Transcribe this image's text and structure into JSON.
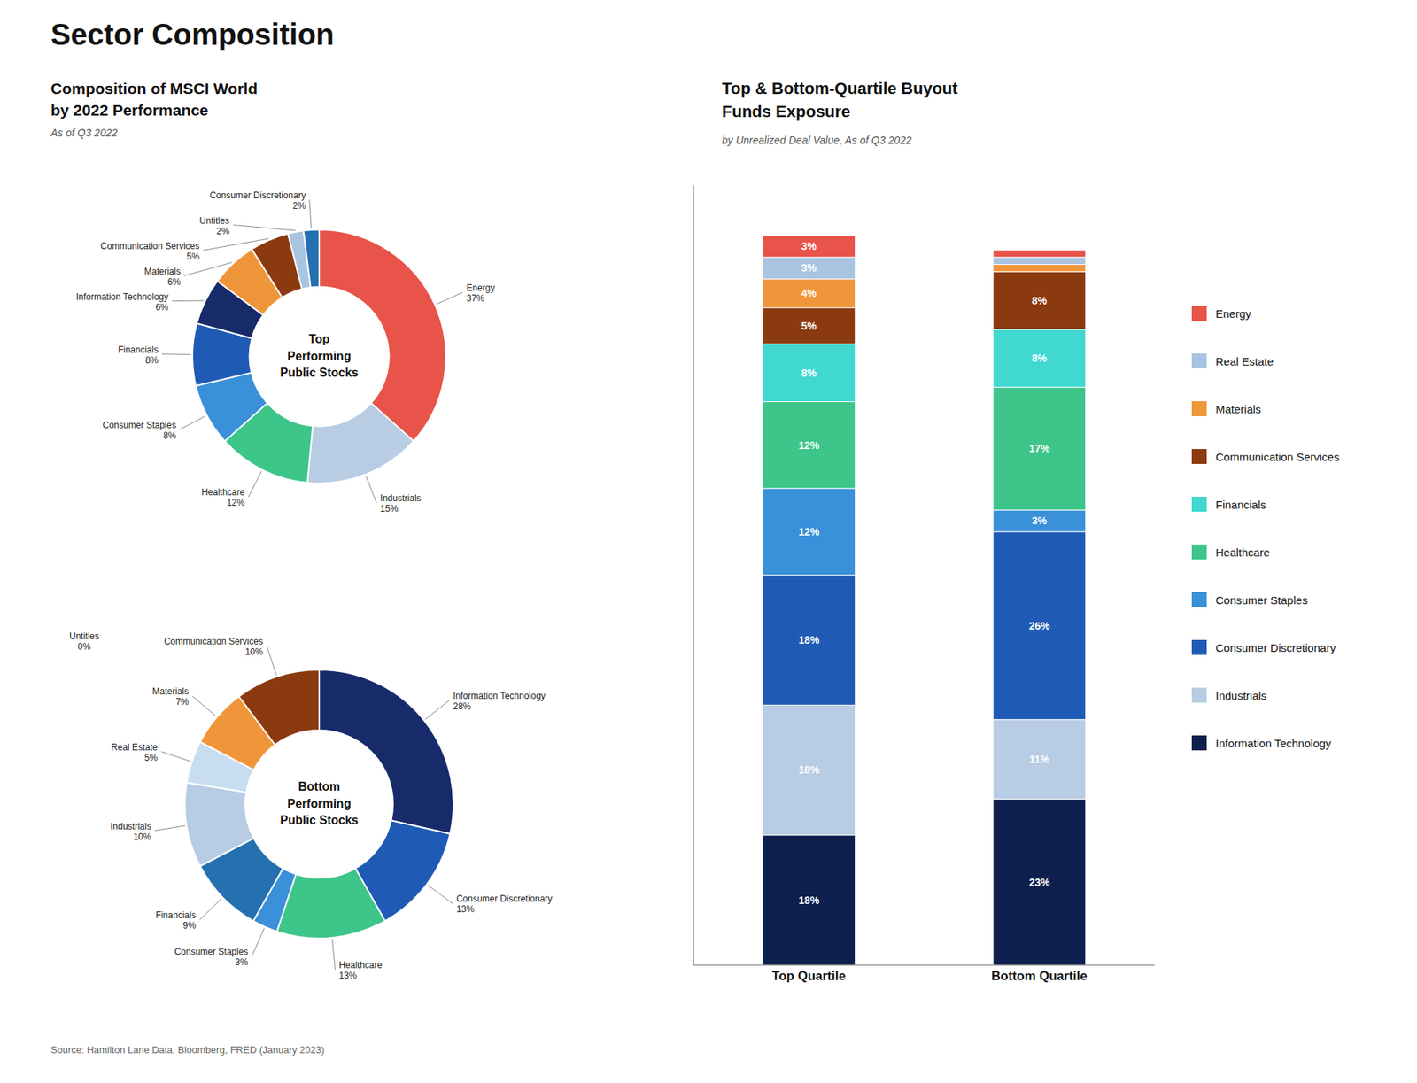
{
  "title": "Sector Composition",
  "annotations": [
    "Source: Hamilton Lane Data, Bloomberg, FRED (January 2023)"
  ],
  "chart_data": [
    {
      "type": "pie",
      "title": "Composition of MSCI World\nby 2022 Performance",
      "subtitle": "As of Q3 2022",
      "annotations": [
        "Top\nPerforming\nPublic Stocks"
      ],
      "categories": [
        "Energy",
        "Industrials",
        "Healthcare",
        "Consumer Staples",
        "Financials",
        "Information Technology",
        "Materials",
        "Communication Services",
        "Untitles",
        "Consumer Discretionary"
      ],
      "values": [
        37,
        15,
        12,
        8,
        8,
        6,
        6,
        5,
        2,
        2
      ],
      "value_labels": [
        "37%",
        "15%",
        "12%",
        "8%",
        "8%",
        "6%",
        "6%",
        "5%",
        "2%",
        "2%"
      ],
      "colors": [
        "#e8534a",
        "#b8cce4",
        "#3dc58a",
        "#3a90d9",
        "#1f5bb5",
        "#172b6b",
        "#f0963a",
        "#8B3a10",
        "#a8c4e0",
        "#2470b0"
      ],
      "data_labels": true
    },
    {
      "type": "pie",
      "annotations": [
        "Bottom\nPerforming\nPublic Stocks",
        "Untitles\n0%"
      ],
      "categories": [
        "Information Technology",
        "Consumer Discretionary",
        "Healthcare",
        "Consumer Staples",
        "Financials",
        "Industrials",
        "Real Estate",
        "Materials",
        "Communication Services"
      ],
      "values": [
        28,
        13,
        13,
        3,
        9,
        10,
        5,
        7,
        10
      ],
      "value_labels": [
        "28%",
        "13%",
        "13%",
        "3%",
        "9%",
        "10%",
        "5%",
        "7%",
        "10%"
      ],
      "colors": [
        "#172b6b",
        "#1f5bb5",
        "#3dc58a",
        "#3a90d9",
        "#2470b0",
        "#b8cce4",
        "#c8ddf0",
        "#f0963a",
        "#8B3a10"
      ],
      "data_labels": true
    },
    {
      "type": "bar",
      "title": "Top & Bottom-Quartile Buyout\nFunds Exposure",
      "subtitle": "by Unrealized Deal Value, As of Q3 2022",
      "categories": [
        "Top Quartile",
        "Bottom Quartile"
      ],
      "series": [
        {
          "name": "Information Technology",
          "color": "#0d1f4e",
          "values": [
            18,
            23
          ],
          "value_labels": [
            "18%",
            "23%"
          ]
        },
        {
          "name": "Industrials",
          "color": "#b8cce4",
          "values": [
            18,
            11
          ],
          "value_labels": [
            "18%",
            "11%"
          ]
        },
        {
          "name": "Consumer Discretionary",
          "color": "#1f5bb5",
          "values": [
            18,
            26
          ],
          "value_labels": [
            "18%",
            "26%"
          ]
        },
        {
          "name": "Consumer Staples",
          "color": "#3a90d9",
          "values": [
            12,
            3
          ],
          "value_labels": [
            "12%",
            "3%"
          ]
        },
        {
          "name": "Healthcare",
          "color": "#3dc58a",
          "values": [
            12,
            17
          ],
          "value_labels": [
            "12%",
            "17%"
          ]
        },
        {
          "name": "Financials",
          "color": "#40d8d0",
          "values": [
            8,
            8
          ],
          "value_labels": [
            "8%",
            "8%"
          ]
        },
        {
          "name": "Communication Services",
          "color": "#8B3a10",
          "values": [
            5,
            8
          ],
          "value_labels": [
            "5%",
            "8%"
          ]
        },
        {
          "name": "Materials",
          "color": "#f0963a",
          "values": [
            4,
            1
          ],
          "value_labels": [
            "4%",
            null
          ]
        },
        {
          "name": "Real Estate",
          "color": "#a8c4e0",
          "values": [
            3,
            1
          ],
          "value_labels": [
            "3%",
            null
          ]
        },
        {
          "name": "Energy",
          "color": "#e8534a",
          "values": [
            3,
            1
          ],
          "value_labels": [
            "3%",
            null
          ]
        }
      ],
      "stacked": true,
      "data_labels": true,
      "ylim": [
        0,
        108
      ],
      "tick_labels": "x",
      "grid": false,
      "legend": "right"
    }
  ]
}
